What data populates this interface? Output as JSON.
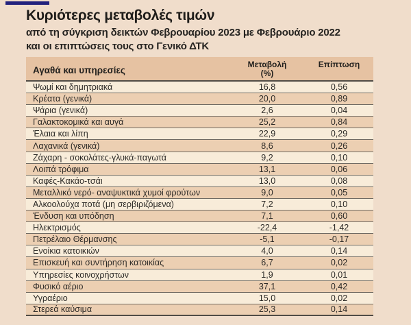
{
  "page": {
    "background_color": "#f0ddcb",
    "accent_line_color": "#22217d"
  },
  "header": {
    "title": "Κυριότερες μεταβολές τιμών",
    "subtitle_line1": "από τη σύγκριση δεικτών Φεβρουαρίου 2023 με Φεβρουάριο 2022",
    "subtitle_line2": "και οι επιπτώσεις τους στο Γενικό ΔΤΚ"
  },
  "table": {
    "colors": {
      "header_bg": "#e6c2a2",
      "row_light": "#f8ecd9",
      "row_dark": "#eccfb2",
      "separator_line": "#6f6a62",
      "strong_line": "#504c46",
      "text": "#2c2a27"
    },
    "columns": {
      "category": "Αγαθά και υπηρεσίες",
      "change_line1": "Μεταβολή",
      "change_line2": "(%)",
      "impact": "Επίπτωση"
    },
    "rows": [
      {
        "category": "Ψωμί και δημητριακά",
        "change": "16,8",
        "impact": "0,56"
      },
      {
        "category": "Κρέατα (γενικά)",
        "change": "20,0",
        "impact": "0,89"
      },
      {
        "category": "Ψάρια (γενικά)",
        "change": "2,6",
        "impact": "0,04"
      },
      {
        "category": "Γαλακτοκομικά και αυγά",
        "change": "25,2",
        "impact": "0,84"
      },
      {
        "category": "Έλαια και λίπη",
        "change": "22,9",
        "impact": "0,29"
      },
      {
        "category": "Λαχανικά (γενικά)",
        "change": "8,6",
        "impact": "0,26"
      },
      {
        "category": "Ζάχαρη - σοκολάτες-γλυκά-παγωτά",
        "change": "9,2",
        "impact": "0,10"
      },
      {
        "category": "Λοιπά τρόφιμα",
        "change": "13,1",
        "impact": "0,06"
      },
      {
        "category": "Καφές-Κακάο-τσάι",
        "change": "13,0",
        "impact": "0,08"
      },
      {
        "category": "Μεταλλικό νερό- αναψυκτικά χυμοί φρούτων",
        "change": "9,0",
        "impact": "0,05"
      },
      {
        "category": "Αλκοολούχα ποτά (μη σερβιριζόμενα)",
        "change": "7,2",
        "impact": "0,10"
      },
      {
        "category": "Ένδυση και υπόδηση",
        "change": "7,1",
        "impact": "0,60"
      },
      {
        "category": "Ηλεκτρισμός",
        "change": "-22,4",
        "impact": "-1,42"
      },
      {
        "category": "Πετρέλαιο Θέρμανσης",
        "change": "-5,1",
        "impact": "-0,17"
      },
      {
        "category": "Ενοίκια κατοικιών",
        "change": "4,0",
        "impact": "0,14"
      },
      {
        "category": "Επισκευή και συντήρηση κατοικίας",
        "change": "6,7",
        "impact": "0,02"
      },
      {
        "category": "Υπηρεσίες κοινοχρήστων",
        "change": "1,9",
        "impact": "0,01"
      },
      {
        "category": "Φυσικό αέριο",
        "change": "37,1",
        "impact": "0,42"
      },
      {
        "category": "Υγραέριο",
        "change": "15,0",
        "impact": "0,02"
      },
      {
        "category": "Στερεά καύσιμα",
        "change": "25,3",
        "impact": "0,14"
      }
    ]
  },
  "chart_data": {
    "type": "table",
    "title": "Κυριότερες μεταβολές τιμών",
    "subtitle": "από τη σύγκριση δεικτών Φεβρουαρίου 2023 με Φεβρουάριο 2022 και οι επιπτώσεις τους στο Γενικό ΔΤΚ",
    "columns": [
      "Αγαθά και υπηρεσίες",
      "Μεταβολή (%)",
      "Επίπτωση"
    ],
    "rows": [
      [
        "Ψωμί και δημητριακά",
        16.8,
        0.56
      ],
      [
        "Κρέατα (γενικά)",
        20.0,
        0.89
      ],
      [
        "Ψάρια (γενικά)",
        2.6,
        0.04
      ],
      [
        "Γαλακτοκομικά και αυγά",
        25.2,
        0.84
      ],
      [
        "Έλαια και λίπη",
        22.9,
        0.29
      ],
      [
        "Λαχανικά (γενικά)",
        8.6,
        0.26
      ],
      [
        "Ζάχαρη - σοκολάτες-γλυκά-παγωτά",
        9.2,
        0.1
      ],
      [
        "Λοιπά τρόφιμα",
        13.1,
        0.06
      ],
      [
        "Καφές-Κακάο-τσάι",
        13.0,
        0.08
      ],
      [
        "Μεταλλικό νερό- αναψυκτικά χυμοί φρούτων",
        9.0,
        0.05
      ],
      [
        "Αλκοολούχα ποτά (μη σερβιριζόμενα)",
        7.2,
        0.1
      ],
      [
        "Ένδυση και υπόδηση",
        7.1,
        0.6
      ],
      [
        "Ηλεκτρισμός",
        -22.4,
        -1.42
      ],
      [
        "Πετρέλαιο Θέρμανσης",
        -5.1,
        -0.17
      ],
      [
        "Ενοίκια κατοικιών",
        4.0,
        0.14
      ],
      [
        "Επισκευή και συντήρηση κατοικίας",
        6.7,
        0.02
      ],
      [
        "Υπηρεσίες κοινοχρήστων",
        1.9,
        0.01
      ],
      [
        "Φυσικό αέριο",
        37.1,
        0.42
      ],
      [
        "Υγραέριο",
        15.0,
        0.02
      ],
      [
        "Στερεά καύσιμα",
        25.3,
        0.14
      ]
    ]
  }
}
